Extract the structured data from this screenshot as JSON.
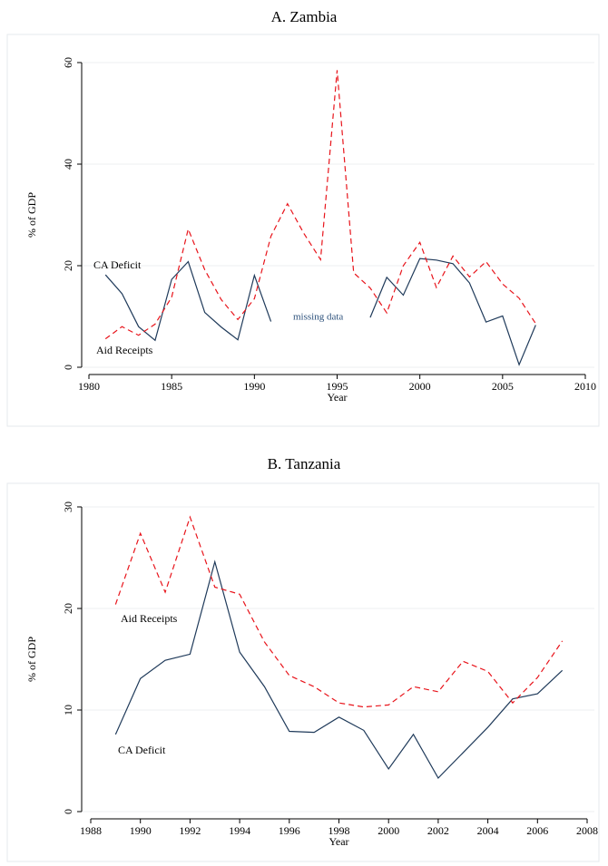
{
  "chart_data": [
    {
      "type": "line",
      "title": "A. Zambia",
      "xlabel": "Year",
      "ylabel": "% of GDP",
      "x": [
        1981,
        1982,
        1983,
        1984,
        1985,
        1986,
        1987,
        1988,
        1989,
        1990,
        1991,
        1992,
        1993,
        1994,
        1995,
        1996,
        1997,
        1998,
        1999,
        2000,
        2001,
        2002,
        2003,
        2004,
        2005,
        2006,
        2007
      ],
      "series": [
        {
          "name": "CA Deficit",
          "color": "#1f3a5a",
          "dash": false,
          "values": [
            18.2,
            14.5,
            8,
            5.3,
            17.3,
            20.8,
            10.8,
            7.9,
            5.4,
            18.1,
            9,
            null,
            null,
            null,
            null,
            null,
            9.8,
            17.7,
            14.2,
            21.4,
            21.1,
            20.4,
            16.6,
            8.9,
            10.1,
            0.5,
            8.3
          ]
        },
        {
          "name": "Aid Receipts",
          "color": "#e8141b",
          "dash": true,
          "values": [
            5.6,
            8,
            6.3,
            8.5,
            13.8,
            27.2,
            19.2,
            13.3,
            9.4,
            13.5,
            25.8,
            32.2,
            26.3,
            21.2,
            58.5,
            18.6,
            15.6,
            10.7,
            20,
            24.6,
            15.7,
            21.9,
            17.8,
            20.8,
            16.4,
            13.6,
            8.6
          ]
        }
      ],
      "annotations": [
        {
          "text": "missing data",
          "color": "#2a4f7a"
        }
      ],
      "xlim": [
        1980,
        2010
      ],
      "xticks": [
        1980,
        1985,
        1990,
        1995,
        2000,
        2005,
        2010
      ],
      "ylim": [
        0,
        60
      ],
      "yticks": [
        0,
        20,
        40,
        60
      ],
      "grid": true
    },
    {
      "type": "line",
      "title": "B. Tanzania",
      "xlabel": "Year",
      "ylabel": "% of GDP",
      "x": [
        1989,
        1990,
        1991,
        1992,
        1993,
        1994,
        1995,
        1996,
        1997,
        1998,
        1999,
        2000,
        2001,
        2002,
        2003,
        2004,
        2005,
        2006,
        2007
      ],
      "series": [
        {
          "name": "CA Deficit",
          "color": "#1f3a5a",
          "dash": false,
          "values": [
            7.6,
            13.1,
            14.9,
            15.5,
            24.6,
            15.7,
            12.3,
            7.9,
            7.8,
            9.3,
            8,
            4.2,
            7.6,
            3.3,
            5.8,
            8.3,
            11.1,
            11.6,
            13.9
          ]
        },
        {
          "name": "Aid Receipts",
          "color": "#e8141b",
          "dash": true,
          "values": [
            20.4,
            27.4,
            21.6,
            29,
            22.1,
            21.4,
            16.7,
            13.4,
            12.3,
            10.7,
            10.3,
            10.5,
            12.3,
            11.8,
            14.8,
            13.8,
            10.7,
            13.2,
            16.8
          ]
        }
      ],
      "xlim": [
        1988,
        2008
      ],
      "xticks": [
        1988,
        1990,
        1992,
        1994,
        1996,
        1998,
        2000,
        2002,
        2004,
        2006,
        2008
      ],
      "ylim": [
        0,
        30
      ],
      "yticks": [
        0,
        10,
        20,
        30
      ],
      "grid": true
    }
  ]
}
